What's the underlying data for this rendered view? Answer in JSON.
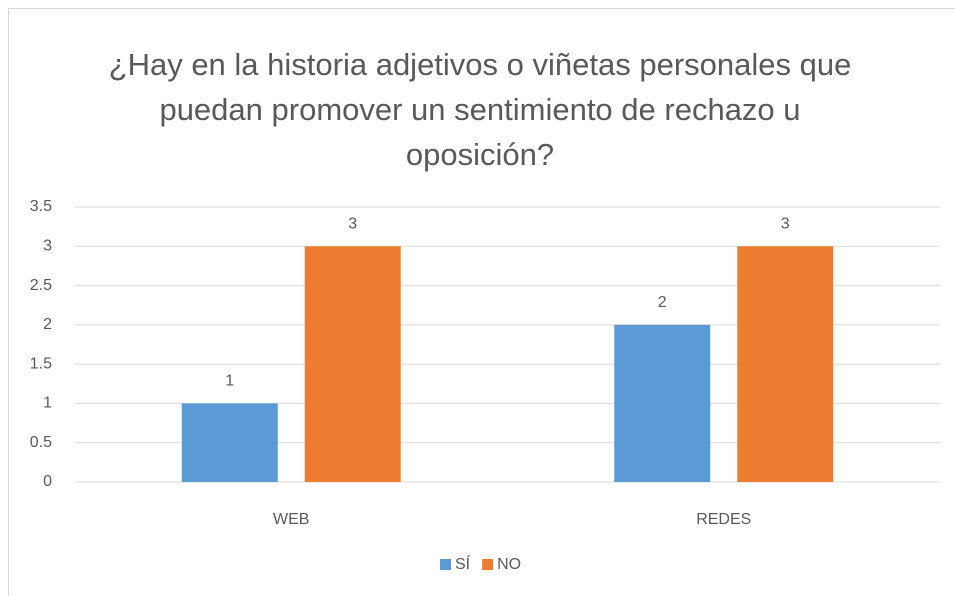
{
  "chart_data": {
    "type": "bar",
    "title": "¿Hay en la historia adjetivos o viñetas personales que puedan promover un sentimiento de rechazo u oposición?",
    "categories": [
      "WEB",
      "REDES"
    ],
    "series": [
      {
        "name": "SÍ",
        "color": "#5b9bd5",
        "values": [
          1,
          2
        ]
      },
      {
        "name": "NO",
        "color": "#ed7d31",
        "values": [
          3,
          3
        ]
      }
    ],
    "ylim": [
      0,
      3.5
    ],
    "yticks": [
      0,
      0.5,
      1,
      1.5,
      2,
      2.5,
      3,
      3.5
    ],
    "grid": true,
    "legend": "bottom"
  }
}
